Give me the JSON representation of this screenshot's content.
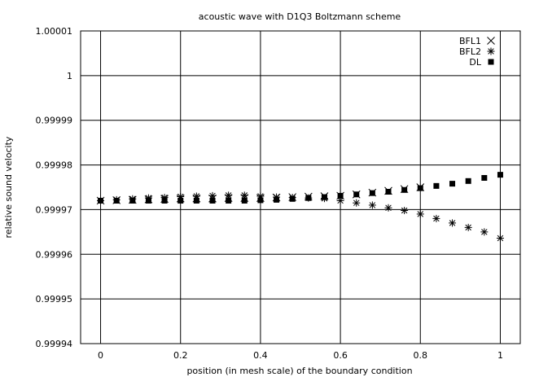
{
  "chart_data": {
    "type": "scatter",
    "title": "acoustic wave with D1Q3 Boltzmann scheme",
    "xlabel": "position (in mesh scale) of the boundary condition",
    "ylabel": "relative sound  velocity",
    "xlim": [
      -0.05,
      1.05
    ],
    "ylim": [
      0.99994,
      1.00001
    ],
    "grid": true,
    "legend_position": "top-right",
    "xticks": [
      0,
      0.2,
      0.4,
      0.6,
      0.8,
      1
    ],
    "xtick_labels": [
      "0",
      "0.2",
      "0.4",
      "0.6",
      "0.8",
      "1"
    ],
    "yticks": [
      0.99994,
      0.99995,
      0.99996,
      0.99997,
      0.99998,
      0.99999,
      1,
      1.00001
    ],
    "ytick_labels": [
      "0.99994",
      "0.99995",
      "0.99996",
      "0.99997",
      "0.99998",
      "0.99999",
      "1",
      "1.00001"
    ],
    "series": [
      {
        "name": "BFL1",
        "marker": "x",
        "x": [
          0,
          0.04,
          0.08,
          0.12,
          0.16,
          0.2,
          0.24,
          0.28,
          0.32,
          0.36,
          0.4,
          0.44,
          0.48,
          0.52,
          0.56,
          0.6,
          0.64,
          0.68,
          0.72,
          0.76,
          0.8
        ],
        "y": [
          0.999972,
          0.9999721,
          0.9999722,
          0.9999723,
          0.9999724,
          0.9999725,
          0.9999725,
          0.9999725,
          0.9999726,
          0.9999726,
          0.9999726,
          0.9999727,
          0.9999728,
          0.9999729,
          0.999973,
          0.9999731,
          0.9999734,
          0.9999738,
          0.9999742,
          0.9999746,
          0.999975
        ]
      },
      {
        "name": "BFL2",
        "marker": "star",
        "x": [
          0,
          0.04,
          0.08,
          0.12,
          0.16,
          0.2,
          0.24,
          0.28,
          0.32,
          0.36,
          0.4,
          0.44,
          0.48,
          0.52,
          0.56,
          0.6,
          0.64,
          0.68,
          0.72,
          0.76,
          0.8,
          0.84,
          0.88,
          0.92,
          0.96,
          1
        ],
        "y": [
          0.999972,
          0.9999722,
          0.9999724,
          0.9999726,
          0.9999727,
          0.9999729,
          0.999973,
          0.9999731,
          0.9999732,
          0.9999732,
          0.999973,
          0.9999728,
          0.9999727,
          0.9999726,
          0.9999725,
          0.999972,
          0.9999715,
          0.999971,
          0.9999704,
          0.9999698,
          0.999969,
          0.999968,
          0.999967,
          0.999966,
          0.999965,
          0.9999636
        ]
      },
      {
        "name": "DL",
        "marker": "square",
        "x": [
          0,
          0.04,
          0.08,
          0.12,
          0.16,
          0.2,
          0.24,
          0.28,
          0.32,
          0.36,
          0.4,
          0.44,
          0.48,
          0.52,
          0.56,
          0.6,
          0.64,
          0.68,
          0.72,
          0.76,
          0.8,
          0.84,
          0.88,
          0.92,
          0.96,
          1
        ],
        "y": [
          0.999972,
          0.999972,
          0.999972,
          0.999972,
          0.999972,
          0.999972,
          0.999972,
          0.999972,
          0.999972,
          0.999972,
          0.9999721,
          0.9999722,
          0.9999724,
          0.9999726,
          0.9999728,
          0.9999731,
          0.9999734,
          0.9999737,
          0.999974,
          0.9999744,
          0.9999748,
          0.9999753,
          0.9999758,
          0.9999764,
          0.9999771,
          0.9999778
        ]
      }
    ]
  }
}
